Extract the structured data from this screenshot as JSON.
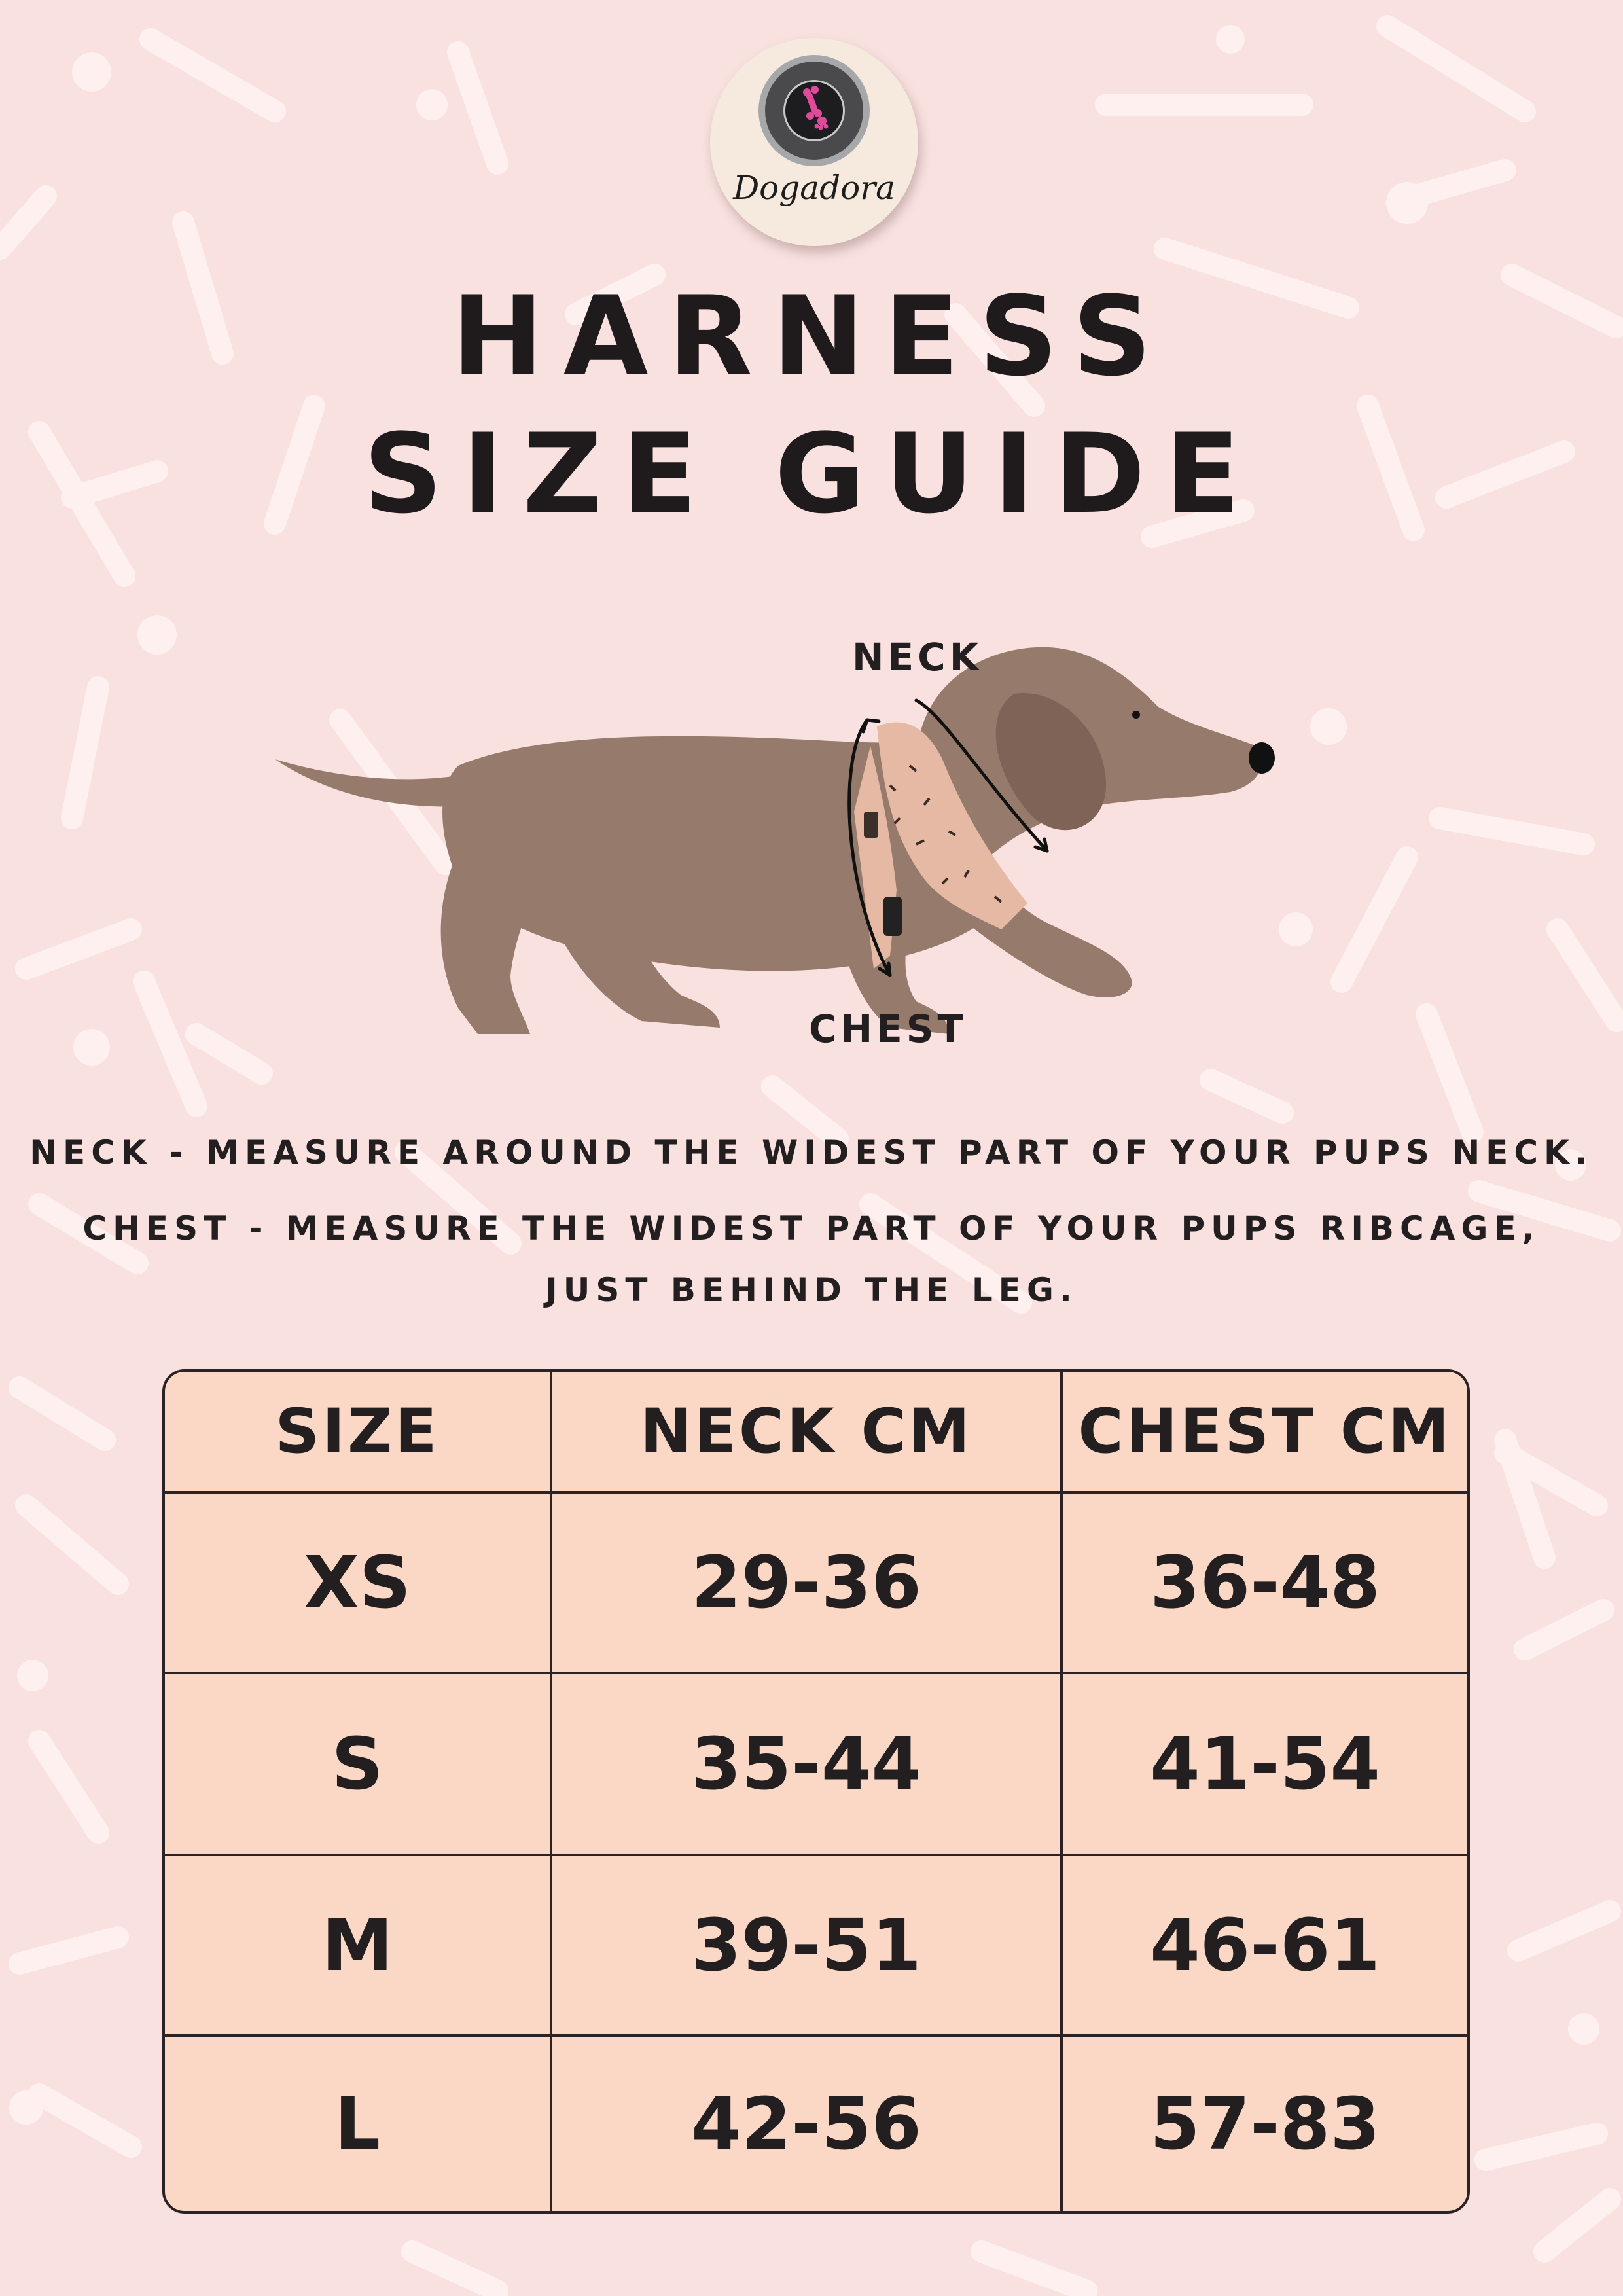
{
  "brand": {
    "name": "Dogadora"
  },
  "title": {
    "line1": "HARNESS",
    "line2": "SIZE GUIDE"
  },
  "illustration": {
    "neck_label": "NECK",
    "chest_label": "CHEST"
  },
  "instructions": {
    "neck": "NECK - MEASURE AROUND THE WIDEST PART OF YOUR PUPS NECK.",
    "chest_line1": "CHEST - MEASURE THE WIDEST PART OF YOUR PUPS RIBCAGE,",
    "chest_line2": "JUST BEHIND THE LEG."
  },
  "table": {
    "headers": [
      "SIZE",
      "NECK CM",
      "CHEST CM"
    ],
    "rows": [
      [
        "XS",
        "29-36",
        "36-48"
      ],
      [
        "S",
        "35-44",
        "41-54"
      ],
      [
        "M",
        "39-51",
        "46-61"
      ],
      [
        "L",
        "42-56",
        "57-83"
      ]
    ]
  },
  "colors": {
    "background": "#f8e1df",
    "confetti": "#fdf0ef",
    "table_fill": "#fad8c5",
    "dog": "#967a6b",
    "harness": "#e6b9a4",
    "text": "#231f20"
  }
}
